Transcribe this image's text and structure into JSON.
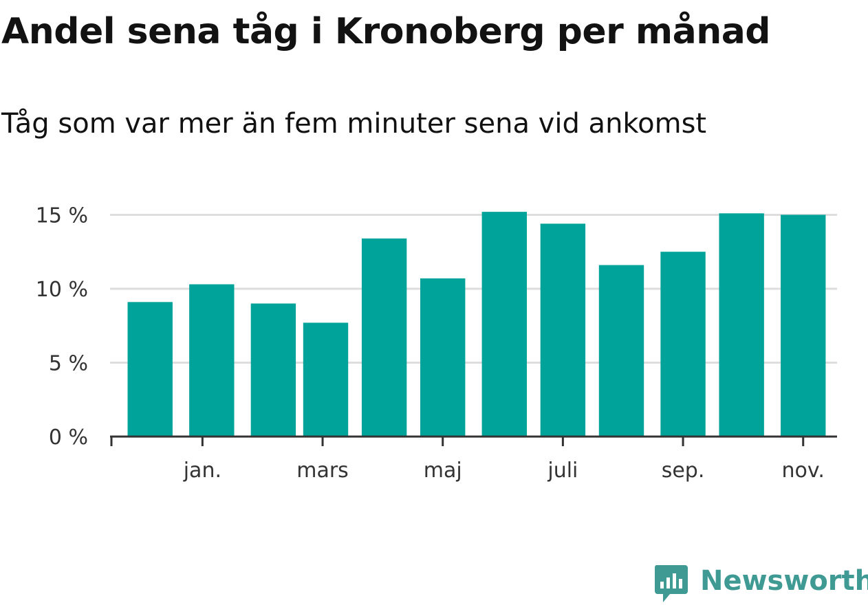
{
  "title": "Andel sena tåg i Kronoberg per månad",
  "subtitle": "Tåg som var mer än fem minuter sena vid ankomst",
  "brand": {
    "name": "Newsworthy",
    "color": "#3f9a94"
  },
  "colors": {
    "bar": "#00a39a",
    "grid": "#dddddd",
    "axis": "#333333"
  },
  "chart_data": {
    "type": "bar",
    "title": "Andel sena tåg i Kronoberg per månad",
    "subtitle": "Tåg som var mer än fem minuter sena vid ankomst",
    "xlabel": "",
    "ylabel": "",
    "ylim": [
      0,
      15.3
    ],
    "yticks": [
      {
        "value": 0,
        "label": "0 %"
      },
      {
        "value": 5,
        "label": "5 %"
      },
      {
        "value": 10,
        "label": "10 %"
      },
      {
        "value": 15,
        "label": "15 %"
      }
    ],
    "xlim": [
      -0.5,
      11.3
    ],
    "series": [
      {
        "name": "Andel sena tåg",
        "points": [
          {
            "x": 0.15,
            "value": 9.1
          },
          {
            "x": 1.15,
            "value": 10.3
          },
          {
            "x": 2.15,
            "value": 9.0
          },
          {
            "x": 3.0,
            "value": 7.7
          },
          {
            "x": 3.95,
            "value": 13.4
          },
          {
            "x": 4.9,
            "value": 10.7
          },
          {
            "x": 5.9,
            "value": 15.2
          },
          {
            "x": 6.85,
            "value": 14.4
          },
          {
            "x": 7.8,
            "value": 11.6
          },
          {
            "x": 8.8,
            "value": 12.5
          },
          {
            "x": 9.75,
            "value": 15.1
          },
          {
            "x": 10.75,
            "value": 15.0
          }
        ]
      }
    ],
    "xticks": [
      {
        "value": 1.0,
        "label": "jan."
      },
      {
        "value": 2.95,
        "label": "mars"
      },
      {
        "value": 4.9,
        "label": "maj"
      },
      {
        "value": 6.85,
        "label": "juli"
      },
      {
        "value": 8.8,
        "label": "sep."
      },
      {
        "value": 10.75,
        "label": "nov."
      }
    ],
    "extra_xticks": [
      -0.5
    ],
    "grid": true,
    "legend": "none"
  }
}
